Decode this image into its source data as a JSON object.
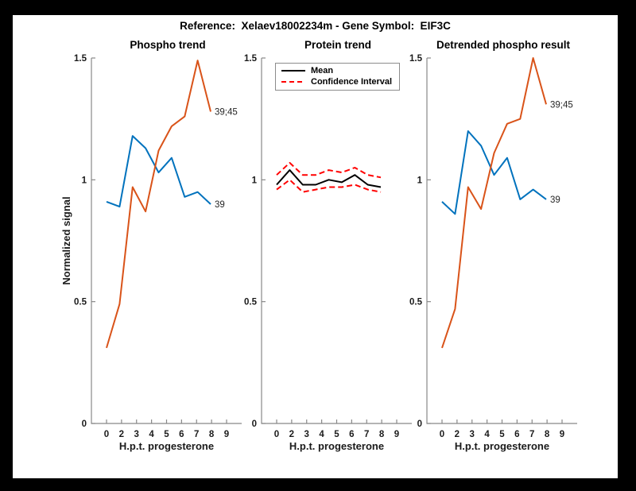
{
  "figure": {
    "title": "Reference:  Xelaev18002234m - Gene Symbol:  EIF3C"
  },
  "colors": {
    "blue": "#0072BD",
    "orange": "#D95319",
    "red": "#FF0000",
    "black": "#000000",
    "axis": "#888888",
    "tick_text": "#1a1a1a",
    "figure_background": "#000000",
    "canvas_background": "#ffffff"
  },
  "chart_data": [
    {
      "type": "line",
      "title": "Phospho trend",
      "xlabel": "H.p.t. progesterone",
      "ylabel": "Normalized signal",
      "categories": [
        "0",
        "2",
        "3",
        "4",
        "5",
        "6",
        "7",
        "8",
        "9"
      ],
      "ylim": [
        0,
        1.5
      ],
      "yticks": [
        0,
        0.5,
        1,
        1.5
      ],
      "ytick_labels": [
        "0",
        "0.5",
        "1",
        "1.5"
      ],
      "grid": false,
      "series": [
        {
          "name": "39",
          "color": "blue",
          "style": "solid",
          "end_label": "39",
          "values": [
            0.91,
            0.89,
            1.18,
            1.13,
            1.03,
            1.09,
            0.93,
            0.95,
            0.9
          ]
        },
        {
          "name": "39;45",
          "color": "orange",
          "style": "solid",
          "end_label": "39;45",
          "values": [
            0.31,
            0.49,
            0.97,
            0.87,
            1.12,
            1.22,
            1.26,
            1.49,
            1.28
          ]
        }
      ]
    },
    {
      "type": "line",
      "title": "Protein trend",
      "xlabel": "H.p.t. progesterone",
      "ylabel": "",
      "categories": [
        "0",
        "2",
        "3",
        "4",
        "5",
        "6",
        "7",
        "8",
        "9"
      ],
      "ylim": [
        0,
        1.5
      ],
      "yticks": [
        0,
        0.5,
        1,
        1.5
      ],
      "ytick_labels": [
        "0",
        "0.5",
        "1",
        "1.5"
      ],
      "grid": false,
      "legend_position": "top-left-inside",
      "legend": [
        {
          "label": "Mean",
          "color": "black",
          "style": "solid"
        },
        {
          "label": "Confidence Interval",
          "color": "red",
          "style": "dashed"
        }
      ],
      "series": [
        {
          "name": "Mean",
          "color": "black",
          "style": "solid",
          "values": [
            0.98,
            1.04,
            0.98,
            0.98,
            1.0,
            0.99,
            1.02,
            0.98,
            0.97
          ]
        },
        {
          "name": "Confidence Interval upper",
          "color": "red",
          "style": "dashed",
          "values": [
            1.02,
            1.07,
            1.02,
            1.02,
            1.04,
            1.03,
            1.05,
            1.02,
            1.01
          ]
        },
        {
          "name": "Confidence Interval lower",
          "color": "red",
          "style": "dashed",
          "values": [
            0.96,
            1.0,
            0.95,
            0.96,
            0.97,
            0.97,
            0.98,
            0.96,
            0.95
          ]
        }
      ]
    },
    {
      "type": "line",
      "title": "Detrended phospho result",
      "xlabel": "H.p.t. progesterone",
      "ylabel": "",
      "categories": [
        "0",
        "2",
        "3",
        "4",
        "5",
        "6",
        "7",
        "8",
        "9"
      ],
      "ylim": [
        0,
        1.5
      ],
      "yticks": [
        0,
        0.5,
        1,
        1.5
      ],
      "ytick_labels": [
        "0",
        "0.5",
        "1",
        "1.5"
      ],
      "grid": false,
      "series": [
        {
          "name": "39",
          "color": "blue",
          "style": "solid",
          "end_label": "39",
          "values": [
            0.91,
            0.86,
            1.2,
            1.14,
            1.02,
            1.09,
            0.92,
            0.96,
            0.92
          ]
        },
        {
          "name": "39;45",
          "color": "orange",
          "style": "solid",
          "end_label": "39;45",
          "values": [
            0.31,
            0.47,
            0.97,
            0.88,
            1.11,
            1.23,
            1.25,
            1.5,
            1.31
          ]
        }
      ]
    }
  ]
}
